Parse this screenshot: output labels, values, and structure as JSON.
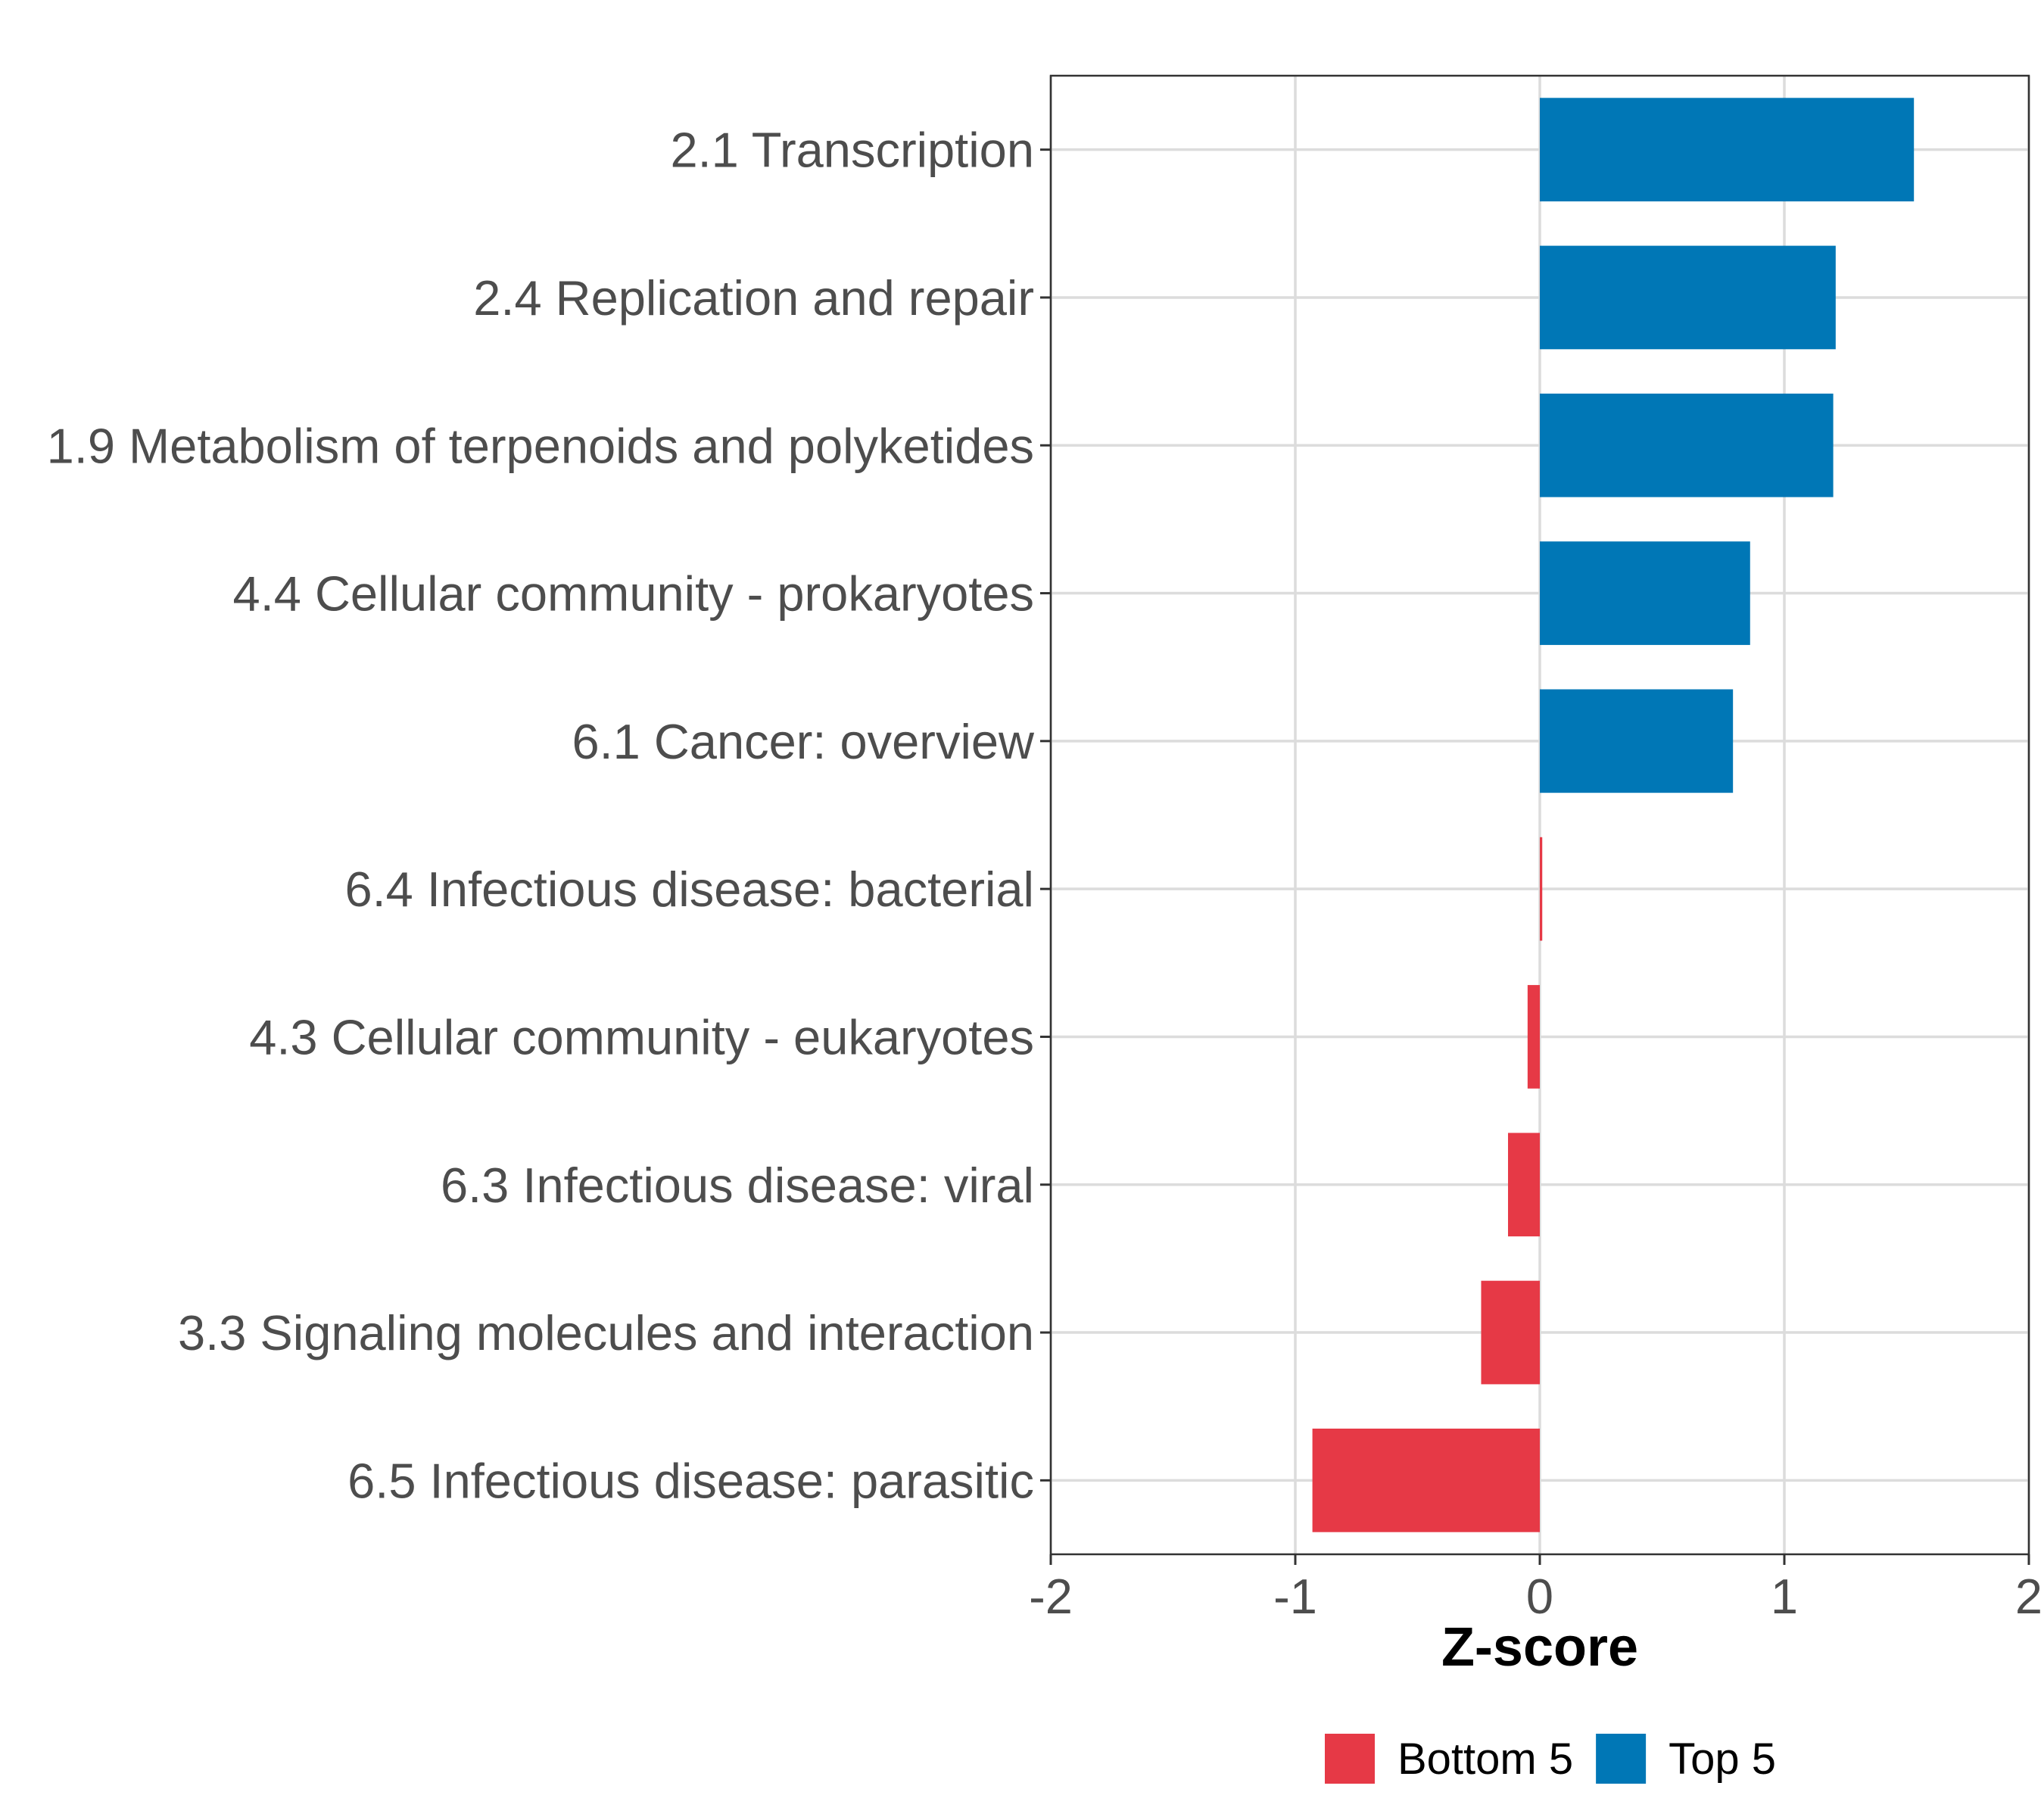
{
  "chart_data": {
    "type": "bar",
    "orientation": "horizontal",
    "categories": [
      "2.1 Transcription",
      "2.4 Replication and repair",
      "1.9 Metabolism of terpenoids and polyketides",
      "4.4 Cellular community - prokaryotes",
      "6.1 Cancer: overview",
      "6.4 Infectious disease: bacterial",
      "4.3 Cellular community - eukaryotes",
      "6.3 Infectious disease: viral",
      "3.3 Signaling molecules and interaction",
      "6.5 Infectious disease: parasitic"
    ],
    "values": [
      1.53,
      1.21,
      1.2,
      0.86,
      0.79,
      0.01,
      -0.05,
      -0.13,
      -0.24,
      -0.93
    ],
    "groups": [
      "Top 5",
      "Top 5",
      "Top 5",
      "Top 5",
      "Top 5",
      "Bottom 5",
      "Bottom 5",
      "Bottom 5",
      "Bottom 5",
      "Bottom 5"
    ],
    "xlabel": "Z-score",
    "ylabel": "",
    "xlim": [
      -2,
      2
    ],
    "xticks": [
      -2,
      -1,
      0,
      1,
      2
    ],
    "xtick_labels": [
      "-2",
      "-1",
      "0",
      "1",
      "2"
    ],
    "grid": true,
    "legend": {
      "position": "bottom",
      "entries": [
        {
          "label": "Bottom 5",
          "color": "#e63946"
        },
        {
          "label": "Top 5",
          "color": "#0077b6"
        }
      ]
    },
    "colors": {
      "Top 5": "#0077b6",
      "Bottom 5": "#e63946"
    }
  }
}
